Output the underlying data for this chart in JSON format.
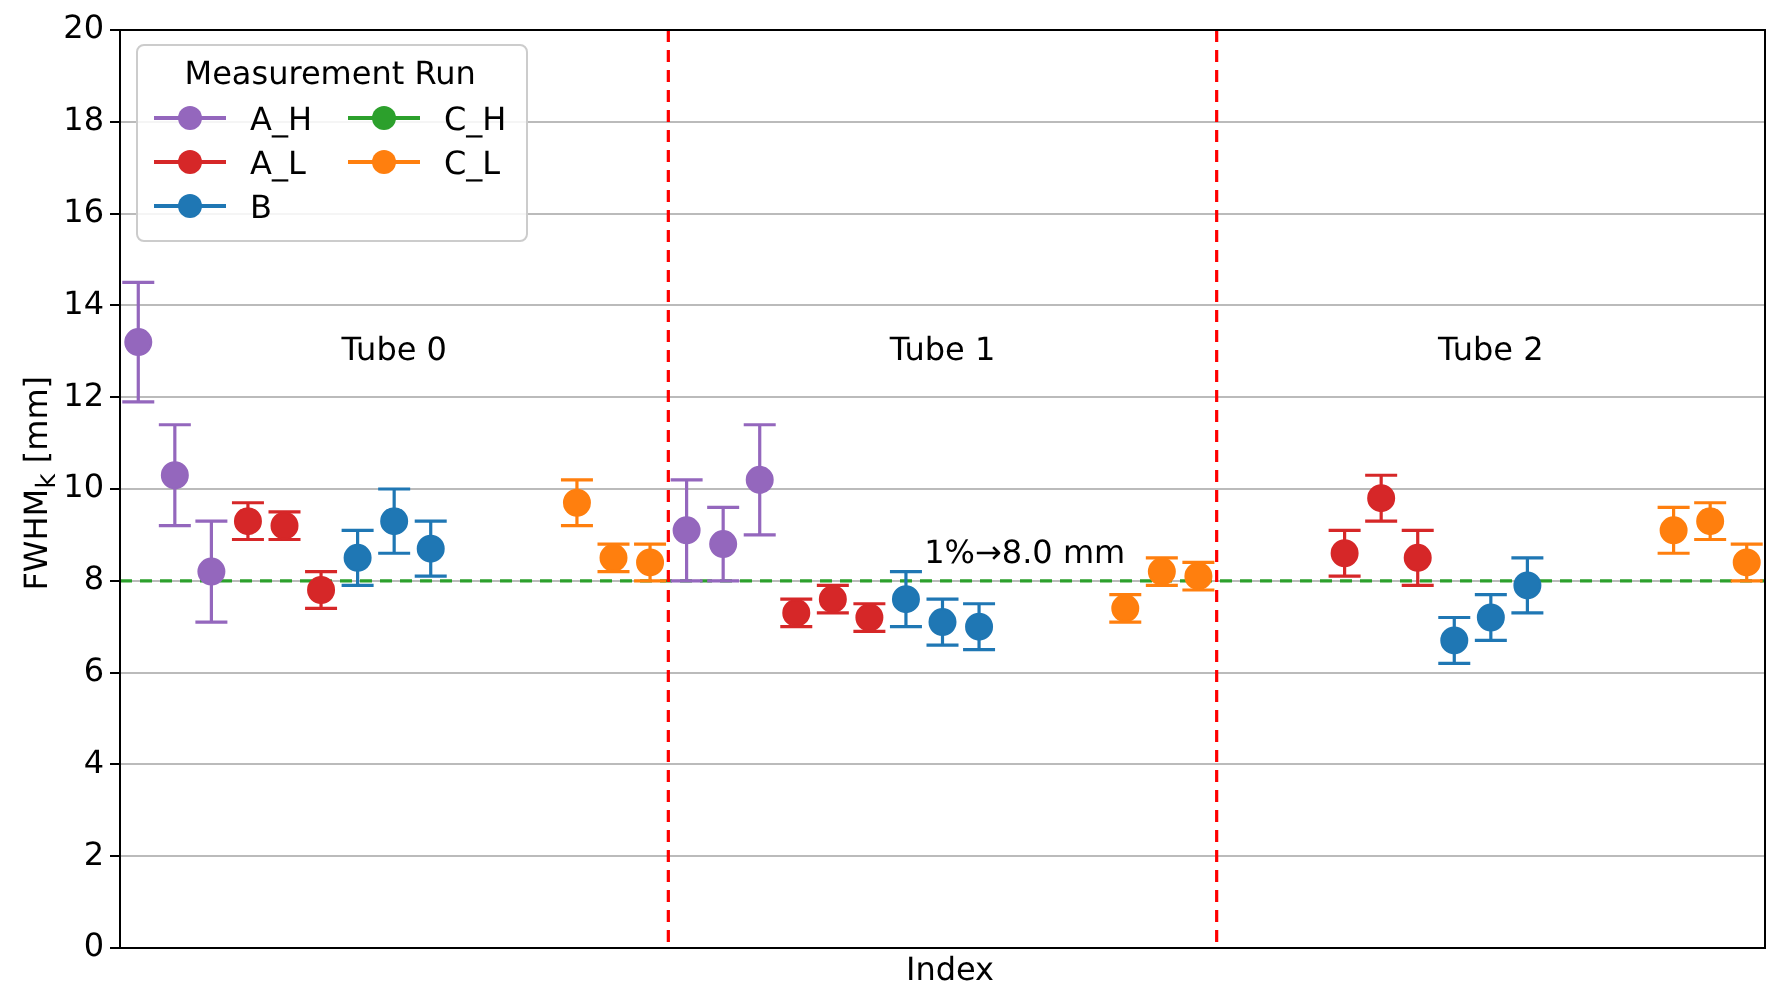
{
  "chart_data": {
    "type": "scatter",
    "ylabel": "FWHM$_{k}$ [mm]",
    "xlabel": "Index",
    "legend_title": "Measurement Run",
    "legend": "top left",
    "grid": "y",
    "marker": "circle",
    "tick_labels": "y",
    "categories": [
      null,
      null,
      null,
      null,
      null,
      null,
      null,
      null,
      null,
      null,
      null,
      null,
      null,
      null,
      null,
      null,
      null,
      null,
      null,
      null,
      null,
      null,
      null,
      null,
      null,
      null,
      null,
      null,
      null,
      null,
      null,
      null,
      null,
      null,
      null,
      null,
      null,
      null,
      null,
      null,
      null,
      null,
      null,
      null,
      null
    ],
    "ylim": [
      0,
      20
    ],
    "yticks": [
      0,
      2,
      4,
      6,
      8,
      10,
      12,
      14,
      16,
      18,
      20
    ],
    "series": [
      {
        "name": "A_H",
        "color": "#9467bd",
        "values": [
          13.2,
          10.3,
          8.2,
          null,
          null,
          null,
          null,
          null,
          null,
          null,
          null,
          null,
          null,
          null,
          null,
          9.1,
          8.8,
          10.2,
          null,
          null,
          null,
          null,
          null,
          null,
          null,
          null,
          null,
          null,
          null,
          null,
          null,
          null,
          null,
          null,
          null,
          null,
          null,
          null,
          null,
          null,
          null,
          null,
          null,
          null,
          null
        ],
        "errors": [
          1.3,
          1.1,
          1.1,
          null,
          null,
          null,
          null,
          null,
          null,
          null,
          null,
          null,
          null,
          null,
          null,
          1.1,
          0.8,
          1.2,
          null,
          null,
          null,
          null,
          null,
          null,
          null,
          null,
          null,
          null,
          null,
          null,
          null,
          null,
          null,
          null,
          null,
          null,
          null,
          null,
          null,
          null,
          null,
          null,
          null,
          null,
          null
        ]
      },
      {
        "name": "A_L",
        "color": "#d62728",
        "values": [
          null,
          null,
          null,
          9.3,
          9.2,
          7.8,
          null,
          null,
          null,
          null,
          null,
          null,
          null,
          null,
          null,
          null,
          null,
          null,
          7.3,
          7.6,
          7.2,
          null,
          null,
          null,
          null,
          null,
          null,
          null,
          null,
          null,
          null,
          null,
          null,
          8.6,
          9.8,
          8.5,
          null,
          null,
          null,
          null,
          null,
          null,
          null,
          null,
          null
        ],
        "errors": [
          null,
          null,
          null,
          0.4,
          0.3,
          0.4,
          null,
          null,
          null,
          null,
          null,
          null,
          null,
          null,
          null,
          null,
          null,
          null,
          0.3,
          0.3,
          0.3,
          null,
          null,
          null,
          null,
          null,
          null,
          null,
          null,
          null,
          null,
          null,
          null,
          0.5,
          0.5,
          0.6,
          null,
          null,
          null,
          null,
          null,
          null,
          null,
          null,
          null
        ]
      },
      {
        "name": "B",
        "color": "#1f77b4",
        "values": [
          null,
          null,
          null,
          null,
          null,
          null,
          8.5,
          9.3,
          8.7,
          null,
          null,
          null,
          null,
          null,
          null,
          null,
          null,
          null,
          null,
          null,
          null,
          7.6,
          7.1,
          7.0,
          null,
          null,
          null,
          null,
          null,
          null,
          null,
          null,
          null,
          null,
          null,
          null,
          6.7,
          7.2,
          7.9,
          null,
          null,
          null,
          null,
          null,
          null
        ],
        "errors": [
          null,
          null,
          null,
          null,
          null,
          null,
          0.6,
          0.7,
          0.6,
          null,
          null,
          null,
          null,
          null,
          null,
          null,
          null,
          null,
          null,
          null,
          null,
          0.6,
          0.5,
          0.5,
          null,
          null,
          null,
          null,
          null,
          null,
          null,
          null,
          null,
          null,
          null,
          null,
          0.5,
          0.5,
          0.6,
          null,
          null,
          null,
          null,
          null,
          null
        ]
      },
      {
        "name": "C_H",
        "color": "#2ca02c",
        "values": [
          null,
          null,
          null,
          null,
          null,
          null,
          null,
          null,
          null,
          null,
          null,
          null,
          null,
          null,
          null,
          null,
          null,
          null,
          null,
          null,
          null,
          null,
          null,
          null,
          null,
          null,
          null,
          null,
          null,
          null,
          null,
          null,
          null,
          null,
          null,
          null,
          null,
          null,
          null,
          null,
          null,
          null,
          null,
          null,
          null
        ]
      },
      {
        "name": "C_L",
        "color": "#ff7f0e",
        "values": [
          null,
          null,
          null,
          null,
          null,
          null,
          null,
          null,
          null,
          null,
          null,
          null,
          9.7,
          8.5,
          8.4,
          null,
          null,
          null,
          null,
          null,
          null,
          null,
          null,
          null,
          null,
          null,
          null,
          7.4,
          8.2,
          8.1,
          null,
          null,
          null,
          null,
          null,
          null,
          null,
          null,
          null,
          null,
          null,
          null,
          9.1,
          9.3,
          8.4
        ],
        "errors": [
          null,
          null,
          null,
          null,
          null,
          null,
          null,
          null,
          null,
          null,
          null,
          null,
          0.5,
          0.3,
          0.4,
          null,
          null,
          null,
          null,
          null,
          null,
          null,
          null,
          null,
          null,
          null,
          null,
          0.3,
          0.3,
          0.3,
          null,
          null,
          null,
          null,
          null,
          null,
          null,
          null,
          null,
          null,
          null,
          null,
          0.5,
          0.4,
          0.4
        ]
      }
    ],
    "ref_lines": [
      {
        "axis": "y",
        "value": 8,
        "color": "#2ca02c",
        "line_style": "dashed",
        "label": "1%→8.0 mm"
      }
    ],
    "annotations": [
      "Tube 0",
      "Tube 1",
      "Tube 2"
    ]
  }
}
